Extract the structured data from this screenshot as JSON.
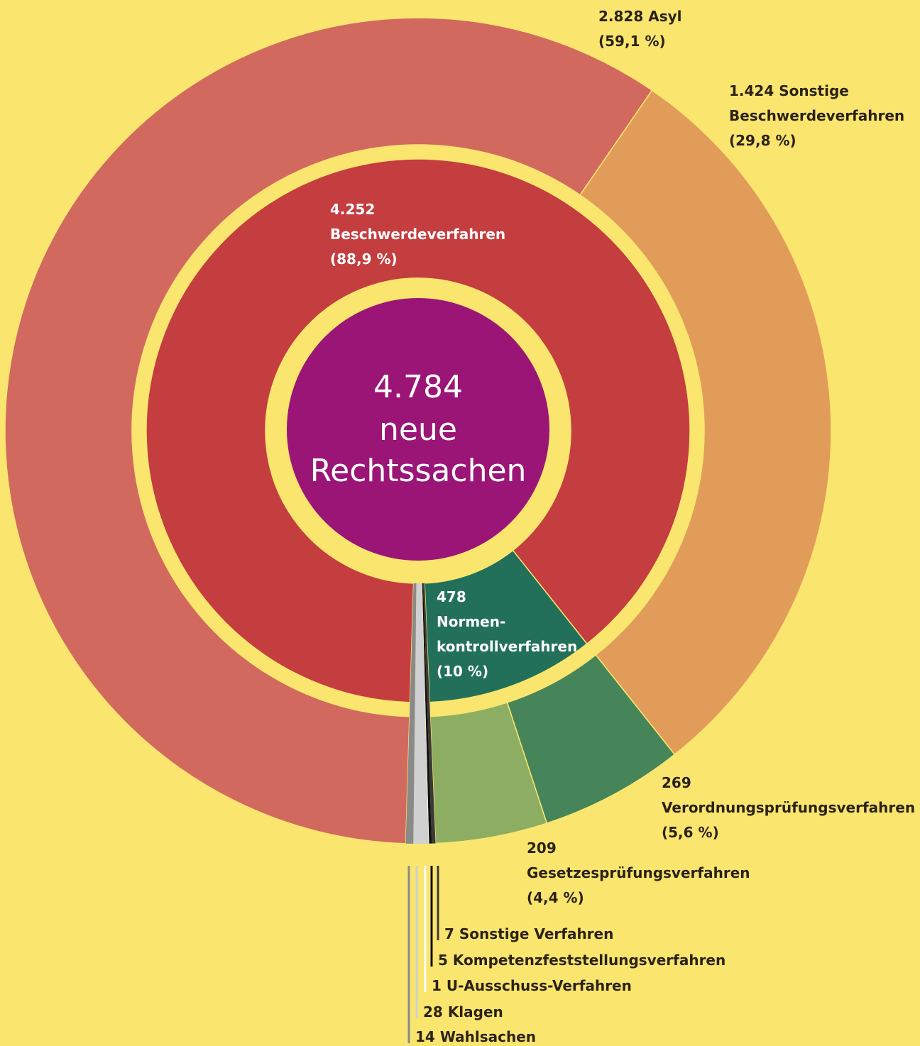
{
  "chart_data": {
    "type": "sunburst",
    "center": {
      "value": 4784,
      "value_label": "4.784",
      "text": [
        "neue",
        "Rechtssachen"
      ],
      "color": "#9b1577"
    },
    "inner": [
      {
        "name": [
          "Beschwerdeverfahren"
        ],
        "value": 4252,
        "value_label": "4.252",
        "percent": 88.9,
        "percent_label": "(88,9 %)",
        "color": "#c43d3f"
      },
      {
        "name": [
          "Normen-",
          "kontrollverfahren"
        ],
        "value": 478,
        "value_label": "478",
        "percent": 10,
        "percent_label": "(10 %)",
        "color": "#22705a"
      }
    ],
    "outer": [
      {
        "name": [
          "Asyl"
        ],
        "value": 2828,
        "value_label": "2.828",
        "percent": 59.1,
        "percent_label": "(59,1 %)",
        "color": "#d2695f"
      },
      {
        "name": [
          "Sonstige",
          "Beschwerdeverfahren"
        ],
        "value": 1424,
        "value_label": "1.424",
        "percent": 29.8,
        "percent_label": "(29,8 %)",
        "color": "#e29c59"
      },
      {
        "name": [
          "Verordnungsprüfungsverfahren"
        ],
        "value": 269,
        "value_label": "269",
        "percent": 5.6,
        "percent_label": "(5,6 %)",
        "color": "#468559"
      },
      {
        "name": [
          "Gesetzesprüfungsverfahren"
        ],
        "value": 209,
        "value_label": "209",
        "percent": 4.4,
        "percent_label": "(4,4 %)",
        "color": "#8cad62"
      }
    ],
    "others": [
      {
        "name": "Sonstige Verfahren",
        "value": 7,
        "color": "#3a3a3a"
      },
      {
        "name": "Kompetenzfeststellungsverfahren",
        "value": 5,
        "color": "#111111"
      },
      {
        "name": "U-Ausschuss-Verfahren",
        "value": 1,
        "color": "#ffffff"
      },
      {
        "name": "Klagen",
        "value": 28,
        "color": "#d0d0d0"
      },
      {
        "name": "Wahlsachen",
        "value": 14,
        "color": "#8a8a8a"
      }
    ]
  }
}
